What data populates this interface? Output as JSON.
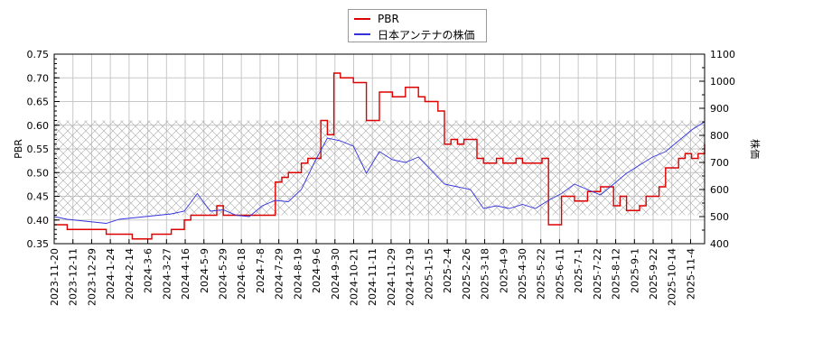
{
  "legend": {
    "items": [
      {
        "label": "PBR",
        "color": "#dd0000"
      },
      {
        "label": "日本アンテナの株価",
        "color": "#3333dd"
      }
    ]
  },
  "chart_data": {
    "type": "line",
    "title": "",
    "xlabel": "",
    "ylabel": "PBR",
    "ylabel_right": "株価",
    "ylim": [
      0.35,
      0.75
    ],
    "ylim_right": [
      400,
      1100
    ],
    "grid": true,
    "legend_position": "top-center",
    "y_ticks": [
      "0.35",
      "0.40",
      "0.45",
      "0.50",
      "0.55",
      "0.60",
      "0.65",
      "0.70",
      "0.75"
    ],
    "y_ticks_right": [
      "400",
      "500",
      "600",
      "700",
      "800",
      "900",
      "1000",
      "1100"
    ],
    "x_ticks": [
      "2023-11-20",
      "2023-12-11",
      "2023-12-29",
      "2024-1-24",
      "2024-2-14",
      "2024-3-6",
      "2024-3-27",
      "2024-4-16",
      "2024-5-9",
      "2024-5-29",
      "2024-6-18",
      "2024-7-8",
      "2024-7-29",
      "2024-8-19",
      "2024-9-6",
      "2024-9-30",
      "2024-10-21",
      "2024-11-11",
      "2024-11-29",
      "2024-12-19",
      "2025-1-15",
      "2025-2-4",
      "2025-2-26",
      "2025-3-18",
      "2025-4-9",
      "2025-4-30",
      "2025-5-22",
      "2025-6-11",
      "2025-7-1",
      "2025-7-22",
      "2025-8-12",
      "2025-9-1",
      "2025-9-22",
      "2025-10-14",
      "2025-11-4"
    ],
    "hatched_band": {
      "axis": "left",
      "from": 0.41,
      "to": 0.61
    },
    "series": [
      {
        "name": "PBR",
        "axis": "left",
        "color": "#dd0000",
        "x": [
          0,
          2,
          8,
          12,
          14,
          15,
          18,
          20,
          21,
          22,
          25,
          26,
          28,
          33,
          34,
          35,
          36,
          38,
          39,
          41,
          42,
          43,
          44,
          46,
          48,
          50,
          52,
          54,
          56,
          57,
          59,
          60,
          61,
          62,
          63,
          65,
          66,
          68,
          69,
          70,
          71,
          72,
          74,
          75,
          76,
          78,
          80,
          82,
          84,
          86,
          87,
          88,
          90,
          91,
          93,
          94,
          96,
          97,
          98,
          99,
          100
        ],
        "values": [
          0.39,
          0.38,
          0.37,
          0.36,
          0.36,
          0.37,
          0.38,
          0.4,
          0.41,
          0.41,
          0.43,
          0.41,
          0.41,
          0.41,
          0.48,
          0.49,
          0.5,
          0.52,
          0.53,
          0.61,
          0.58,
          0.71,
          0.7,
          0.69,
          0.61,
          0.67,
          0.66,
          0.68,
          0.66,
          0.65,
          0.63,
          0.56,
          0.57,
          0.56,
          0.57,
          0.53,
          0.52,
          0.53,
          0.52,
          0.52,
          0.53,
          0.52,
          0.52,
          0.53,
          0.39,
          0.45,
          0.44,
          0.46,
          0.47,
          0.43,
          0.45,
          0.42,
          0.43,
          0.45,
          0.47,
          0.51,
          0.53,
          0.54,
          0.53,
          0.54,
          0.56
        ]
      },
      {
        "name": "日本アンテナの株価",
        "axis": "right",
        "color": "#3333dd",
        "x": [
          0,
          2,
          4,
          6,
          8,
          10,
          12,
          14,
          16,
          18,
          20,
          22,
          24,
          26,
          28,
          30,
          32,
          34,
          36,
          38,
          40,
          42,
          44,
          46,
          48,
          50,
          52,
          54,
          56,
          58,
          60,
          62,
          64,
          66,
          68,
          70,
          72,
          74,
          76,
          78,
          80,
          82,
          84,
          86,
          88,
          90,
          92,
          94,
          96,
          98,
          100
        ],
        "values": [
          500,
          490,
          485,
          480,
          475,
          490,
          495,
          500,
          505,
          510,
          520,
          585,
          520,
          525,
          505,
          500,
          540,
          560,
          555,
          600,
          700,
          790,
          780,
          760,
          660,
          740,
          710,
          700,
          720,
          670,
          620,
          610,
          600,
          530,
          540,
          530,
          545,
          530,
          560,
          585,
          620,
          600,
          580,
          620,
          660,
          690,
          720,
          740,
          780,
          820,
          850
        ]
      }
    ]
  }
}
